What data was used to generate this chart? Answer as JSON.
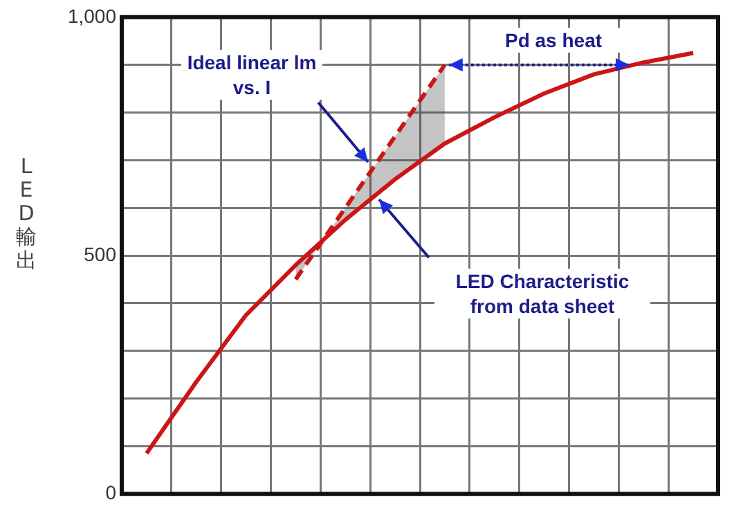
{
  "chart_data": {
    "type": "line",
    "ylabel": "LED輸出",
    "categories": [
      null,
      null,
      null,
      null,
      null,
      null,
      null,
      null,
      null,
      null,
      null,
      null
    ],
    "ylim": [
      0,
      1000
    ],
    "yticks": [
      0,
      {
        "value": 100,
        "label": null
      },
      {
        "value": 200,
        "label": null
      },
      {
        "value": 300,
        "label": null
      },
      {
        "value": 400,
        "label": null
      },
      500,
      {
        "value": 600,
        "label": null
      },
      {
        "value": 700,
        "label": null
      },
      {
        "value": 800,
        "label": null
      },
      {
        "value": 900,
        "label": null
      },
      {
        "value": 1000,
        "label": "1,000"
      }
    ],
    "tick_labels": "y",
    "grid": true,
    "legend": false,
    "marker": "none",
    "series": [
      {
        "color": "#cc1515",
        "line_style": "solid",
        "values": [
          85,
          235,
          375,
          480,
          575,
          660,
          735,
          790,
          840,
          880,
          905,
          925
        ]
      },
      {
        "color": "#cc1515",
        "line_style": "dashed",
        "values": [
          null,
          null,
          null,
          450,
          600,
          750,
          900,
          null,
          null,
          null,
          null,
          null
        ]
      }
    ],
    "annotations": [
      "Ideal linear lm vs. I",
      "LED Characteristic from data sheet",
      "Pd as heat"
    ]
  }
}
